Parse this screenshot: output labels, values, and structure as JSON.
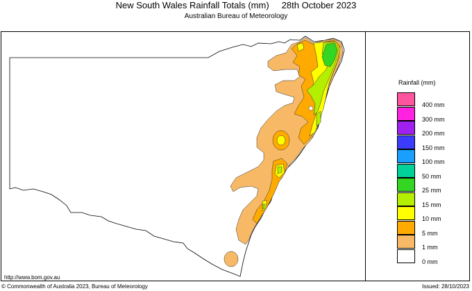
{
  "header": {
    "title": "New South Wales Rainfall Totals (mm)     28th October 2023",
    "subtitle": "Australian Bureau of Meteorology"
  },
  "legend": {
    "title": "Rainfall (mm)",
    "items": [
      {
        "label": "400 mm",
        "color": "#ff55a0"
      },
      {
        "label": "300 mm",
        "color": "#ff22e0"
      },
      {
        "label": "200 mm",
        "color": "#a020f0"
      },
      {
        "label": "150 mm",
        "color": "#3c3cff"
      },
      {
        "label": "100 mm",
        "color": "#19a0ff"
      },
      {
        "label": "50 mm",
        "color": "#00d29a"
      },
      {
        "label": "25 mm",
        "color": "#33d623"
      },
      {
        "label": "15 mm",
        "color": "#b4ee00"
      },
      {
        "label": "10 mm",
        "color": "#ffff00"
      },
      {
        "label": "5 mm",
        "color": "#ffaa00"
      },
      {
        "label": "1 mm",
        "color": "#f7b966"
      },
      {
        "label": "0 mm",
        "color": "#ffffff"
      }
    ]
  },
  "footer": {
    "url": "http://www.bom.gov.au",
    "copyright": "© Commonwealth of Australia 2023, Bureau of Meteorology",
    "issued": "Issued: 28/10/2023"
  }
}
